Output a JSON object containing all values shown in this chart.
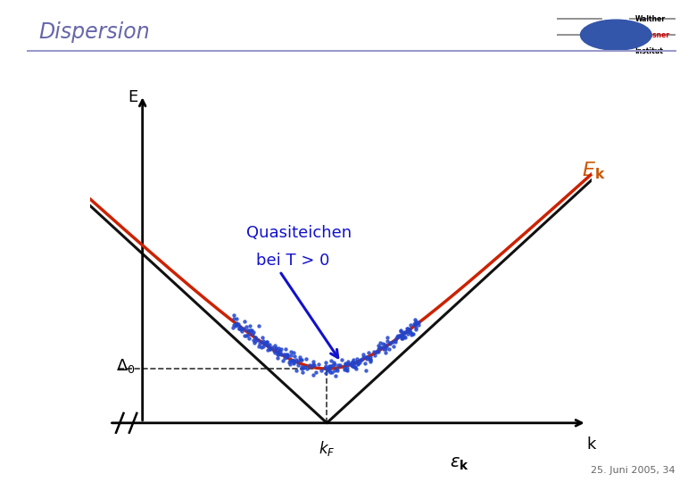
{
  "title": "Dispersion",
  "subtitle_line1": "Quasiteichen",
  "subtitle_line2": "bei T > 0",
  "xlabel": "k",
  "ylabel": "E",
  "kF_label": "k_F",
  "delta_label": "Δ0",
  "Ek_label": "E_k",
  "epsk_label": "ε_k",
  "background_color": "#ffffff",
  "title_color": "#6666aa",
  "subtitle_color": "#1111cc",
  "Ek_color": "#cc2200",
  "epsk_color": "#111111",
  "scatter_color": "#2244cc",
  "dashed_color": "#333333",
  "footer_text": "25. Juni 2005, 34",
  "kF": 0.0,
  "delta0": 1.0,
  "x_range": [
    -2.5,
    2.8
  ],
  "y_range": [
    -2.2,
    4.2
  ],
  "axis_x_start": -2.2,
  "axis_y_start": -2.0,
  "Ek_label_color": "#cc5500"
}
